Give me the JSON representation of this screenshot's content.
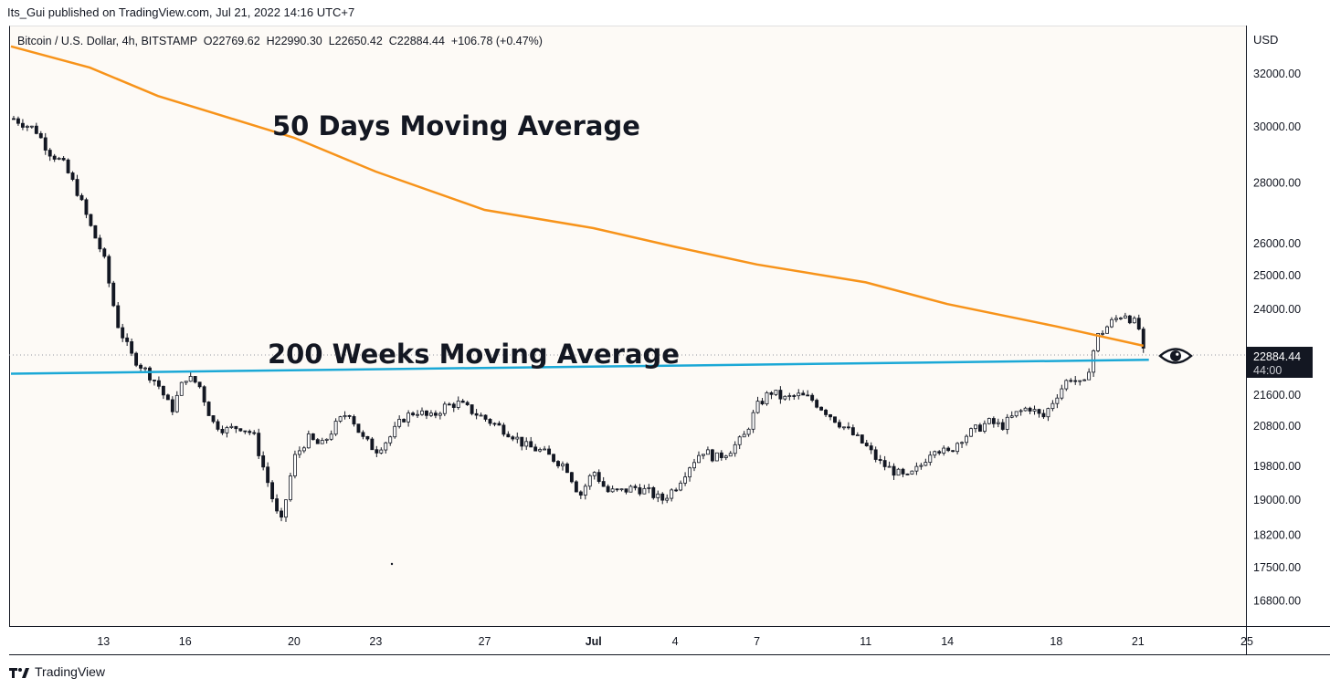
{
  "header": {
    "published": "Its_Gui published on TradingView.com, Jul 21, 2022 14:16 UTC+7"
  },
  "legend": {
    "symbol": "Bitcoin / U.S. Dollar, 4h, BITSTAMP",
    "open": "O22769.62",
    "high": "H22990.30",
    "low": "L22650.42",
    "close": "C22884.44",
    "change": "+106.78 (+0.47%)"
  },
  "price_axis": {
    "currency": "USD"
  },
  "current_price": {
    "value": "22884.44",
    "countdown": "44:00"
  },
  "footer": {
    "brand": "TradingView"
  },
  "colors": {
    "ma50": "#f7931a",
    "ma200w": "#1ba8d6",
    "candle_up": "#ffffff",
    "candle_down": "#131722",
    "label_bg": "#131722"
  },
  "chart_data": {
    "type": "candlestick",
    "title": "Bitcoin / U.S. Dollar, 4h, BITSTAMP",
    "scale": "log",
    "ylim": [
      16400,
      33500
    ],
    "y_ticks": [
      32000,
      30000,
      28000,
      26000,
      25000,
      24000,
      21600,
      20800,
      19800,
      19000,
      18200,
      17500,
      16800
    ],
    "x_range_days": [
      -3.4,
      41.9
    ],
    "x_ticks": [
      {
        "label": "13",
        "day": 0
      },
      {
        "label": "16",
        "day": 3
      },
      {
        "label": "20",
        "day": 7
      },
      {
        "label": "23",
        "day": 10
      },
      {
        "label": "27",
        "day": 14
      },
      {
        "label": "Jul",
        "day": 18
      },
      {
        "label": "4",
        "day": 21
      },
      {
        "label": "7",
        "day": 24
      },
      {
        "label": "11",
        "day": 28
      },
      {
        "label": "14",
        "day": 31
      },
      {
        "label": "18",
        "day": 35
      },
      {
        "label": "21",
        "day": 38
      },
      {
        "label": "25",
        "day": 42
      }
    ],
    "close_path": [
      {
        "day": -3.3,
        "close": 30300
      },
      {
        "day": -2.5,
        "close": 29900
      },
      {
        "day": -2.0,
        "close": 29100
      },
      {
        "day": -1.5,
        "close": 28700
      },
      {
        "day": -1.0,
        "close": 27800
      },
      {
        "day": -0.5,
        "close": 26600
      },
      {
        "day": 0.0,
        "close": 25600
      },
      {
        "day": 0.5,
        "close": 23600
      },
      {
        "day": 1.0,
        "close": 22700
      },
      {
        "day": 1.5,
        "close": 22300
      },
      {
        "day": 2.0,
        "close": 21900
      },
      {
        "day": 2.5,
        "close": 21200
      },
      {
        "day": 3.0,
        "close": 22100
      },
      {
        "day": 3.5,
        "close": 21900
      },
      {
        "day": 4.0,
        "close": 20900
      },
      {
        "day": 4.5,
        "close": 20700
      },
      {
        "day": 5.0,
        "close": 20800
      },
      {
        "day": 5.5,
        "close": 20600
      },
      {
        "day": 6.0,
        "close": 19500
      },
      {
        "day": 6.5,
        "close": 18400
      },
      {
        "day": 7.0,
        "close": 20000
      },
      {
        "day": 7.5,
        "close": 20500
      },
      {
        "day": 8.0,
        "close": 20300
      },
      {
        "day": 8.5,
        "close": 20800
      },
      {
        "day": 9.0,
        "close": 21200
      },
      {
        "day": 9.5,
        "close": 20500
      },
      {
        "day": 10.0,
        "close": 20200
      },
      {
        "day": 10.5,
        "close": 20500
      },
      {
        "day": 11.0,
        "close": 21000
      },
      {
        "day": 11.5,
        "close": 21200
      },
      {
        "day": 12.0,
        "close": 21000
      },
      {
        "day": 12.5,
        "close": 21300
      },
      {
        "day": 13.0,
        "close": 21400
      },
      {
        "day": 13.5,
        "close": 21200
      },
      {
        "day": 14.0,
        "close": 21000
      },
      {
        "day": 14.5,
        "close": 20800
      },
      {
        "day": 15.0,
        "close": 20600
      },
      {
        "day": 15.5,
        "close": 20300
      },
      {
        "day": 16.0,
        "close": 20200
      },
      {
        "day": 16.5,
        "close": 20000
      },
      {
        "day": 17.0,
        "close": 19800
      },
      {
        "day": 17.5,
        "close": 19100
      },
      {
        "day": 18.0,
        "close": 19700
      },
      {
        "day": 18.5,
        "close": 19200
      },
      {
        "day": 19.0,
        "close": 19200
      },
      {
        "day": 19.5,
        "close": 19300
      },
      {
        "day": 20.0,
        "close": 19200
      },
      {
        "day": 20.5,
        "close": 19000
      },
      {
        "day": 21.0,
        "close": 19300
      },
      {
        "day": 21.5,
        "close": 19800
      },
      {
        "day": 22.0,
        "close": 20200
      },
      {
        "day": 22.5,
        "close": 20000
      },
      {
        "day": 23.0,
        "close": 20200
      },
      {
        "day": 23.5,
        "close": 20500
      },
      {
        "day": 24.0,
        "close": 21300
      },
      {
        "day": 24.5,
        "close": 21700
      },
      {
        "day": 25.0,
        "close": 21500
      },
      {
        "day": 25.5,
        "close": 21600
      },
      {
        "day": 26.0,
        "close": 21500
      },
      {
        "day": 26.5,
        "close": 21200
      },
      {
        "day": 27.0,
        "close": 20900
      },
      {
        "day": 27.5,
        "close": 20600
      },
      {
        "day": 28.0,
        "close": 20300
      },
      {
        "day": 28.5,
        "close": 19900
      },
      {
        "day": 29.0,
        "close": 19700
      },
      {
        "day": 29.5,
        "close": 19500
      },
      {
        "day": 30.0,
        "close": 19800
      },
      {
        "day": 30.5,
        "close": 20300
      },
      {
        "day": 31.0,
        "close": 20100
      },
      {
        "day": 31.5,
        "close": 20500
      },
      {
        "day": 32.0,
        "close": 20700
      },
      {
        "day": 32.5,
        "close": 20900
      },
      {
        "day": 33.0,
        "close": 20800
      },
      {
        "day": 33.5,
        "close": 21100
      },
      {
        "day": 34.0,
        "close": 21300
      },
      {
        "day": 34.5,
        "close": 21000
      },
      {
        "day": 35.0,
        "close": 21600
      },
      {
        "day": 35.5,
        "close": 22100
      },
      {
        "day": 36.0,
        "close": 21800
      },
      {
        "day": 36.5,
        "close": 23200
      },
      {
        "day": 37.0,
        "close": 23600
      },
      {
        "day": 37.5,
        "close": 23900
      },
      {
        "day": 38.0,
        "close": 23500
      },
      {
        "day": 38.3,
        "close": 22884
      }
    ],
    "series": [
      {
        "name": "50 Days Moving Average",
        "color": "#f7931a",
        "points": [
          {
            "day": -3.4,
            "value": 33100
          },
          {
            "day": -0.5,
            "value": 32250
          },
          {
            "day": 2.0,
            "value": 31150
          },
          {
            "day": 7.0,
            "value": 29600
          },
          {
            "day": 10.0,
            "value": 28400
          },
          {
            "day": 14.0,
            "value": 27100
          },
          {
            "day": 18.0,
            "value": 26500
          },
          {
            "day": 21.0,
            "value": 25900
          },
          {
            "day": 24.0,
            "value": 25350
          },
          {
            "day": 28.0,
            "value": 24800
          },
          {
            "day": 31.0,
            "value": 24150
          },
          {
            "day": 35.0,
            "value": 23500
          },
          {
            "day": 38.2,
            "value": 22950
          }
        ]
      },
      {
        "name": "200 Weeks Moving Average",
        "color": "#1ba8d6",
        "points": [
          {
            "day": -3.4,
            "value": 22180
          },
          {
            "day": 38.4,
            "value": 22560
          }
        ]
      }
    ],
    "annotations": [
      "50 Days Moving Average",
      "200 Weeks Moving Average"
    ]
  }
}
